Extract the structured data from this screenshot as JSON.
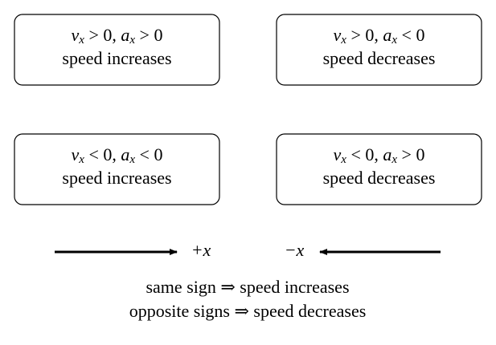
{
  "boxes": [
    {
      "velocity": {
        "symbol": "v",
        "subscript": "x",
        "relation": " > 0, "
      },
      "acceleration": {
        "symbol": "a",
        "subscript": "x",
        "relation": " > 0"
      },
      "result": "speed increases"
    },
    {
      "velocity": {
        "symbol": "v",
        "subscript": "x",
        "relation": " > 0, "
      },
      "acceleration": {
        "symbol": "a",
        "subscript": "x",
        "relation": " < 0"
      },
      "result": "speed decreases"
    },
    {
      "velocity": {
        "symbol": "v",
        "subscript": "x",
        "relation": " < 0, "
      },
      "acceleration": {
        "symbol": "a",
        "subscript": "x",
        "relation": " < 0"
      },
      "result": "speed increases"
    },
    {
      "velocity": {
        "symbol": "v",
        "subscript": "x",
        "relation": " < 0, "
      },
      "acceleration": {
        "symbol": "a",
        "subscript": "x",
        "relation": " > 0"
      },
      "result": "speed decreases"
    }
  ],
  "axes": {
    "positive": "+x",
    "negative": "−x"
  },
  "notes": [
    "same sign ⇒ speed increases",
    "opposite signs ⇒ speed decreases"
  ]
}
